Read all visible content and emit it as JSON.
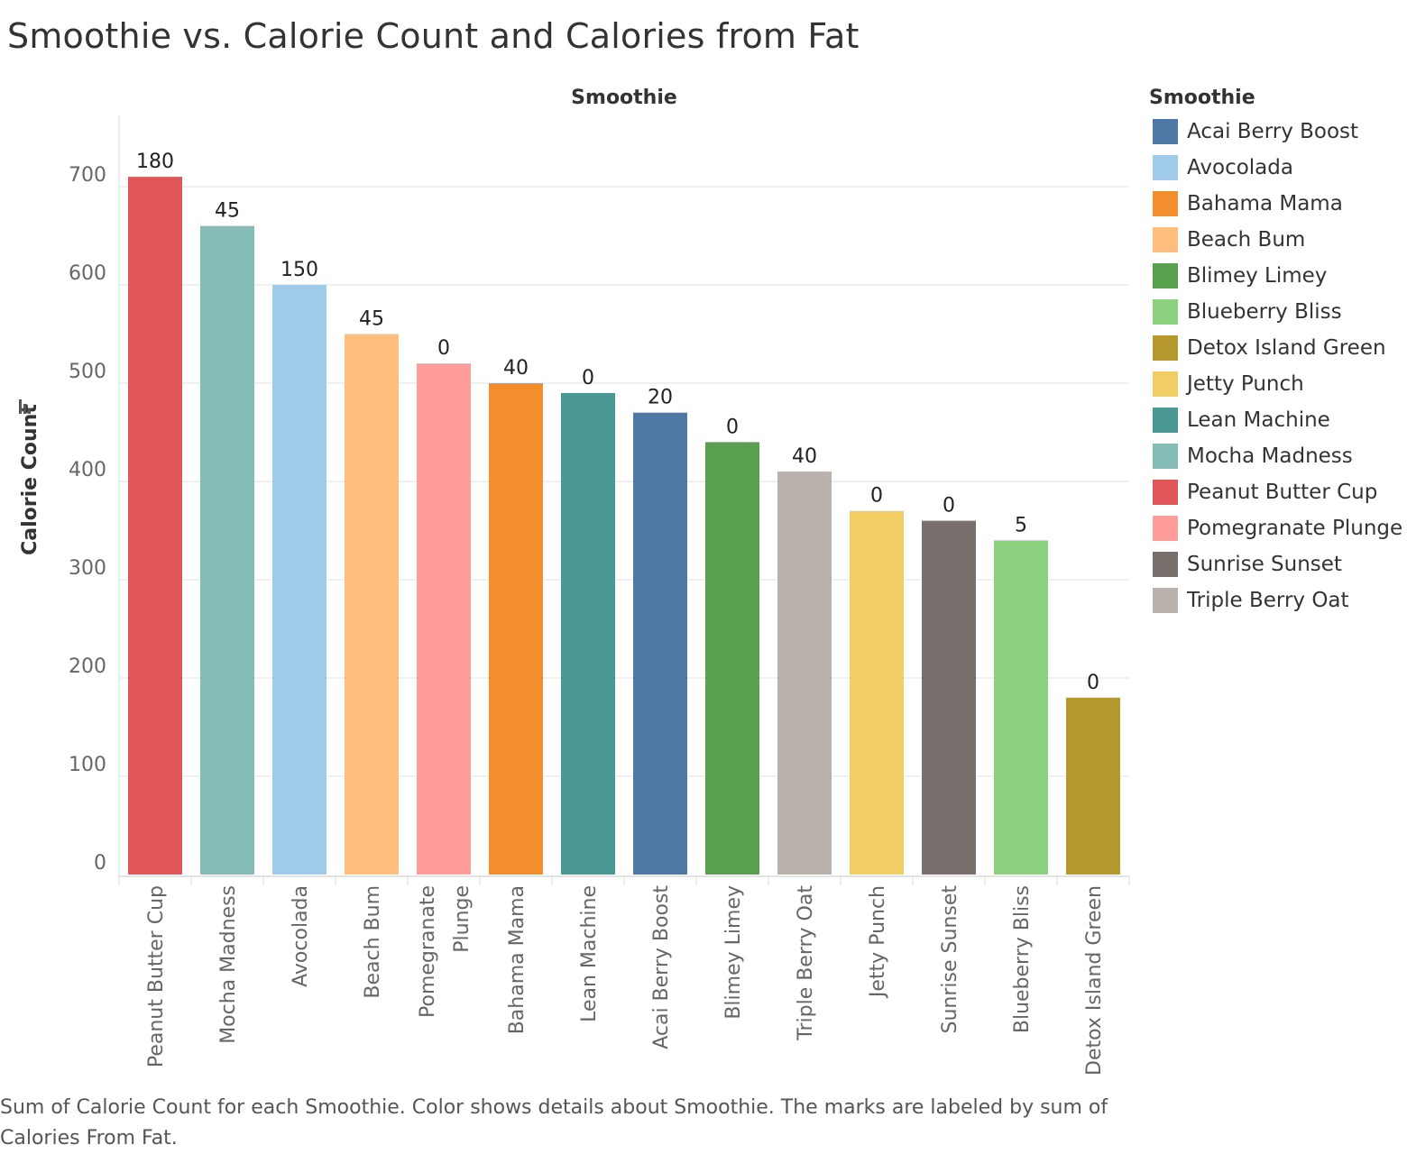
{
  "title": "Smoothie vs. Calorie Count and Calories from Fat",
  "caption": "Sum of Calorie Count for each Smoothie.  Color shows details about Smoothie.  The marks are labeled by sum of Calories From Fat.",
  "legend": {
    "title": "Smoothie",
    "items": [
      {
        "label": "Acai Berry Boost",
        "color": "#4e79a7"
      },
      {
        "label": "Avocolada",
        "color": "#a0cbe8"
      },
      {
        "label": "Bahama Mama",
        "color": "#f28e2b"
      },
      {
        "label": "Beach Bum",
        "color": "#ffbe7d"
      },
      {
        "label": "Blimey Limey",
        "color": "#59a14f"
      },
      {
        "label": "Blueberry Bliss",
        "color": "#8cd17d"
      },
      {
        "label": "Detox Island Green",
        "color": "#b6992d"
      },
      {
        "label": "Jetty Punch",
        "color": "#f1ce63"
      },
      {
        "label": "Lean Machine",
        "color": "#499894"
      },
      {
        "label": "Mocha Madness",
        "color": "#86bcb6"
      },
      {
        "label": "Peanut Butter Cup",
        "color": "#e15759"
      },
      {
        "label": "Pomegranate Plunge",
        "color": "#ff9d9a"
      },
      {
        "label": "Sunrise Sunset",
        "color": "#79706e"
      },
      {
        "label": "Triple Berry Oat",
        "color": "#bab0ac"
      }
    ]
  },
  "chart_data": {
    "type": "bar",
    "title": "Smoothie vs. Calorie Count and Calories from Fat",
    "column_header": "Smoothie",
    "xlabel": "",
    "ylabel": "Calorie Count",
    "ylim": [
      0,
      750
    ],
    "yticks": [
      0,
      100,
      200,
      300,
      400,
      500,
      600,
      700
    ],
    "grid": true,
    "legend_position": "right",
    "categories": [
      "Peanut Butter Cup",
      "Mocha Madness",
      "Avocolada",
      "Beach Bum",
      "Pomegranate Plunge",
      "Bahama Mama",
      "Lean Machine",
      "Acai Berry Boost",
      "Blimey Limey",
      "Triple Berry Oat",
      "Jetty Punch",
      "Sunrise Sunset",
      "Blueberry Bliss",
      "Detox Island Green"
    ],
    "category_labels": [
      [
        "Peanut Butter Cup"
      ],
      [
        "Mocha Madness"
      ],
      [
        "Avocolada"
      ],
      [
        "Beach Bum"
      ],
      [
        "Pomegranate",
        "Plunge"
      ],
      [
        "Bahama Mama"
      ],
      [
        "Lean Machine"
      ],
      [
        "Acai Berry Boost"
      ],
      [
        "Blimey Limey"
      ],
      [
        "Triple Berry Oat"
      ],
      [
        "Jetty Punch"
      ],
      [
        "Sunrise Sunset"
      ],
      [
        "Blueberry Bliss"
      ],
      [
        "Detox Island Green"
      ]
    ],
    "values": [
      710,
      660,
      600,
      550,
      520,
      500,
      490,
      470,
      440,
      410,
      370,
      360,
      340,
      180
    ],
    "labels": [
      "180",
      "45",
      "150",
      "45",
      "0",
      "40",
      "0",
      "20",
      "0",
      "40",
      "0",
      "0",
      "5",
      "0"
    ],
    "colors": [
      "#e15759",
      "#86bcb6",
      "#a0cbe8",
      "#ffbe7d",
      "#ff9d9a",
      "#f28e2b",
      "#499894",
      "#4e79a7",
      "#59a14f",
      "#bab0ac",
      "#f1ce63",
      "#79706e",
      "#8cd17d",
      "#b6992d"
    ]
  }
}
